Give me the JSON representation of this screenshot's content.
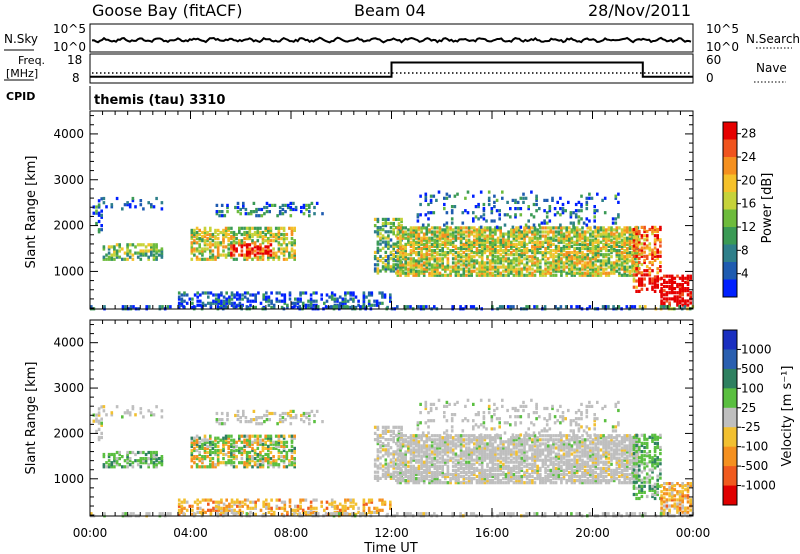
{
  "header": {
    "station": "Goose Bay (fitACF)",
    "beam": "Beam 04",
    "date": "28/Nov/2011"
  },
  "chart_data": [
    {
      "type": "line",
      "panel": "noise",
      "left_label": "N.Sky",
      "right_label": "N.Search",
      "left_ticks": [
        "10^5",
        "10^0"
      ],
      "right_ticks": [
        "10^5",
        "10^0"
      ],
      "description_values": {
        "series": "N.Sky noise, near-constant across the day"
      }
    },
    {
      "type": "line",
      "panel": "frequency",
      "left_label_top": "Freq.",
      "left_label_bottom": "[MHz]",
      "right_label": "Nave",
      "left_ticks": [
        18,
        8
      ],
      "right_ticks": [
        60,
        0
      ],
      "freq_series": {
        "x": [
          0,
          12,
          12,
          22,
          22,
          24
        ],
        "y": [
          10,
          10,
          15.5,
          15.5,
          10,
          10
        ],
        "x_unit": "hours UT"
      }
    },
    {
      "type": "text",
      "panel": "cpid",
      "label": "CPID",
      "value": "themis (tau) 3310"
    },
    {
      "type": "heatmap",
      "panel": "power",
      "ylabel": "Slant Range [km]",
      "yticks": [
        1000,
        2000,
        3000,
        4000
      ],
      "ylim": [
        180,
        4500
      ],
      "colorbar": {
        "label": "Power [dB]",
        "ticks": [
          4,
          8,
          12,
          16,
          20,
          24,
          28
        ],
        "range": [
          0,
          30
        ],
        "colors": [
          "#0020ff",
          "#1e5bb0",
          "#2e7f8a",
          "#3a9a55",
          "#6dbb3c",
          "#c6d33a",
          "#f5c12a",
          "#f5901f",
          "#f0541e",
          "#e60000"
        ]
      }
    },
    {
      "type": "heatmap",
      "panel": "velocity",
      "ylabel": "Slant Range [km]",
      "yticks": [
        1000,
        2000,
        3000,
        4000
      ],
      "ylim": [
        180,
        4500
      ],
      "xlabel": "Time UT",
      "xticks": [
        "00:00",
        "04:00",
        "08:00",
        "12:00",
        "16:00",
        "20:00",
        "00:00"
      ],
      "xlim_hours": [
        0,
        24
      ],
      "colorbar": {
        "label": "Velocity [m s⁻¹]",
        "ticks": [
          "1000",
          "500",
          "100",
          "25",
          "-25",
          "-100",
          "-500",
          "-1000"
        ],
        "colors": [
          "#1a2fc0",
          "#2a5fb0",
          "#2e8060",
          "#5abf40",
          "#bfbfbf",
          "#f2c030",
          "#f5901f",
          "#f05a1e",
          "#e00000"
        ]
      }
    }
  ]
}
